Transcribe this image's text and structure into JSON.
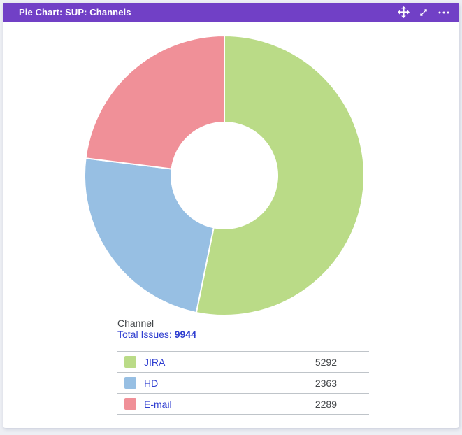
{
  "header": {
    "title": "Pie Chart: SUP: Channels",
    "bg_color": "#7140c6",
    "icons": [
      "move-icon",
      "expand-icon",
      "more-options-icon"
    ]
  },
  "summary": {
    "stat_label": "Channel",
    "total_label": "Total Issues:",
    "total_value": "9944"
  },
  "chart_data": {
    "type": "pie",
    "style": "donut",
    "title": "SUP: Channels",
    "stat_type": "Channel",
    "categories": [
      "JIRA",
      "HD",
      "E-mail"
    ],
    "values": [
      5292,
      2363,
      2289
    ],
    "percentages": [
      53.2,
      23.8,
      23.0
    ],
    "total": 9944,
    "colors": [
      "#badb87",
      "#97bfe3",
      "#f09098"
    ],
    "inner_radius_ratio": 0.38,
    "slice_gap_color": "#ffffff",
    "legend_position": "bottom-table"
  },
  "colors": {
    "header_bg": "#7140c6",
    "header_text": "#ffffff",
    "link_text": "#2f3ed0",
    "dark_text": "#44474a",
    "divider": "#bfc4c9",
    "card_bg": "#ffffff",
    "page_bg": "#edeff4"
  }
}
